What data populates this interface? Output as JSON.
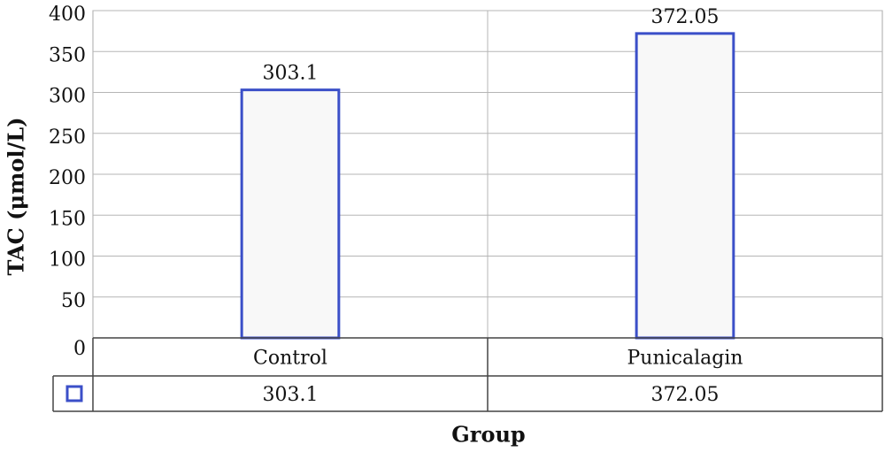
{
  "chart_data": {
    "type": "bar",
    "categories": [
      "Control",
      "Punicalagin"
    ],
    "values": [
      303.1,
      372.05
    ],
    "color": "#3b4fc8",
    "xlabel": "Group",
    "ylabel": "TAC (μmol/L)",
    "ylim": [
      0,
      400
    ],
    "yticks": [
      0,
      50,
      100,
      150,
      200,
      250,
      300,
      350,
      400
    ],
    "grid": true
  }
}
